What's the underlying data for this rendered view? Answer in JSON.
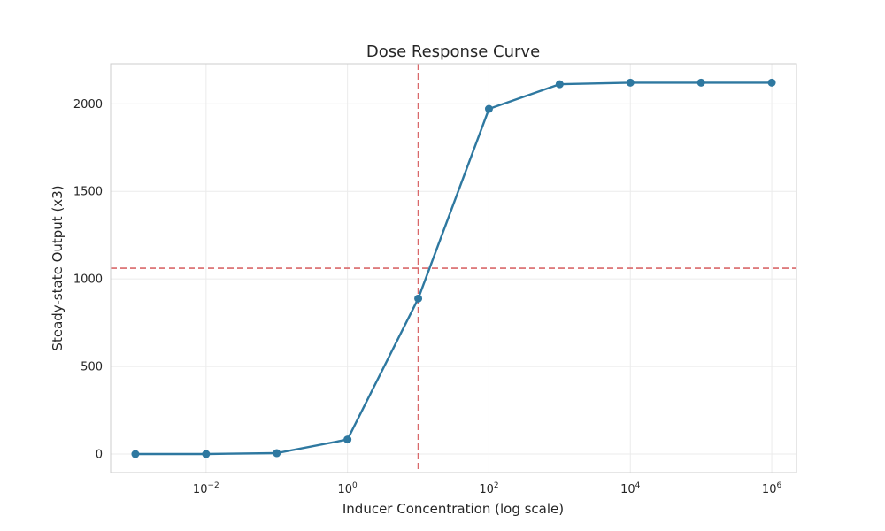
{
  "chart_data": {
    "type": "line",
    "title": "Dose Response Curve",
    "xlabel": "Inducer Concentration (log scale)",
    "ylabel": "Steady-state Output (x3)",
    "xscale": "log",
    "xlim": [
      0.000447,
      2236068
    ],
    "ylim": [
      -106,
      2229
    ],
    "grid": true,
    "x_ticks": [
      {
        "value": 0.01,
        "base": "10",
        "exp": "−2"
      },
      {
        "value": 1,
        "base": "10",
        "exp": "0"
      },
      {
        "value": 100,
        "base": "10",
        "exp": "2"
      },
      {
        "value": 10000,
        "base": "10",
        "exp": "4"
      },
      {
        "value": 1000000,
        "base": "10",
        "exp": "6"
      }
    ],
    "y_ticks": [
      {
        "value": 0,
        "label": "0"
      },
      {
        "value": 500,
        "label": "500"
      },
      {
        "value": 1000,
        "label": "1000"
      },
      {
        "value": 1500,
        "label": "1500"
      },
      {
        "value": 2000,
        "label": "2000"
      }
    ],
    "series": [
      {
        "color": "#2e78a0",
        "x": [
          0.001,
          0.01,
          0.1,
          1,
          10,
          100,
          1000,
          10000,
          100000,
          1000000
        ],
        "y": [
          0,
          0,
          5,
          83,
          888,
          1971,
          2112,
          2121,
          2121,
          2121
        ]
      }
    ],
    "reference_lines": [
      {
        "orientation": "vertical",
        "value": 10,
        "color": "#d9686a",
        "style": "dashed"
      },
      {
        "orientation": "horizontal",
        "value": 1061,
        "color": "#d9686a",
        "style": "dashed"
      }
    ]
  }
}
